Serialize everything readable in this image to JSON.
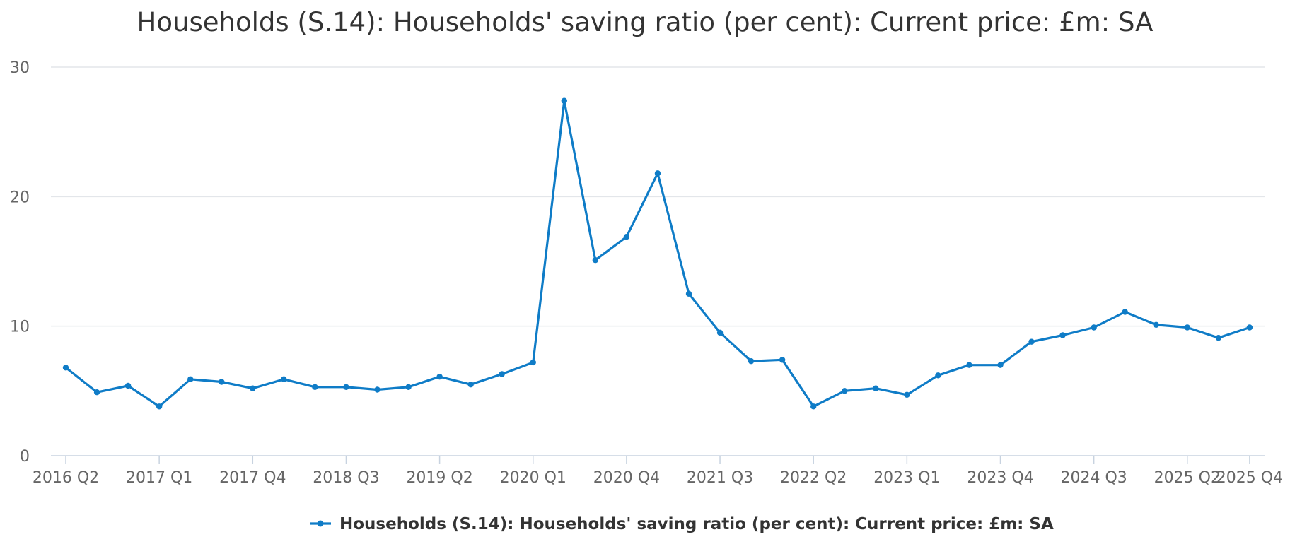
{
  "chart_data": {
    "type": "line",
    "title": "Households (S.14): Households' saving ratio (per cent): Current price: £m: SA",
    "xlabel": "",
    "ylabel": "",
    "ylim": [
      0,
      30
    ],
    "yticks": [
      0,
      10,
      20,
      30
    ],
    "grid": true,
    "legend_position": "bottom-center",
    "line_color": "#0f7cc7",
    "x": [
      "2016 Q2",
      "2016 Q3",
      "2016 Q4",
      "2017 Q1",
      "2017 Q2",
      "2017 Q3",
      "2017 Q4",
      "2018 Q1",
      "2018 Q2",
      "2018 Q3",
      "2018 Q4",
      "2019 Q1",
      "2019 Q2",
      "2019 Q3",
      "2019 Q4",
      "2020 Q1",
      "2020 Q2",
      "2020 Q3",
      "2020 Q4",
      "2021 Q1",
      "2021 Q2",
      "2021 Q3",
      "2021 Q4",
      "2022 Q1",
      "2022 Q2",
      "2022 Q3",
      "2022 Q4",
      "2023 Q1",
      "2023 Q2",
      "2023 Q3",
      "2023 Q4",
      "2024 Q1",
      "2024 Q2",
      "2024 Q3",
      "2024 Q4",
      "2025 Q1",
      "2025 Q2",
      "2025 Q3",
      "2025 Q4"
    ],
    "tick_labels": [
      "2016 Q2",
      "2017 Q1",
      "2017 Q4",
      "2018 Q3",
      "2019 Q2",
      "2020 Q1",
      "2020 Q4",
      "2021 Q3",
      "2022 Q2",
      "2023 Q1",
      "2023 Q4",
      "2024 Q3",
      "2025 Q2",
      "2025 Q4"
    ],
    "series": [
      {
        "name": "Households (S.14): Households' saving ratio (per cent): Current price: £m: SA",
        "values": [
          6.8,
          4.9,
          5.4,
          3.8,
          5.9,
          5.7,
          5.2,
          5.9,
          5.3,
          5.3,
          5.1,
          5.3,
          6.1,
          5.5,
          6.3,
          7.2,
          27.4,
          15.1,
          16.9,
          21.8,
          12.5,
          9.5,
          7.3,
          7.4,
          3.8,
          5.0,
          5.2,
          4.7,
          6.2,
          7.0,
          7.0,
          8.8,
          9.3,
          9.9,
          11.1,
          10.1,
          9.9,
          9.1,
          9.9
        ]
      }
    ]
  }
}
